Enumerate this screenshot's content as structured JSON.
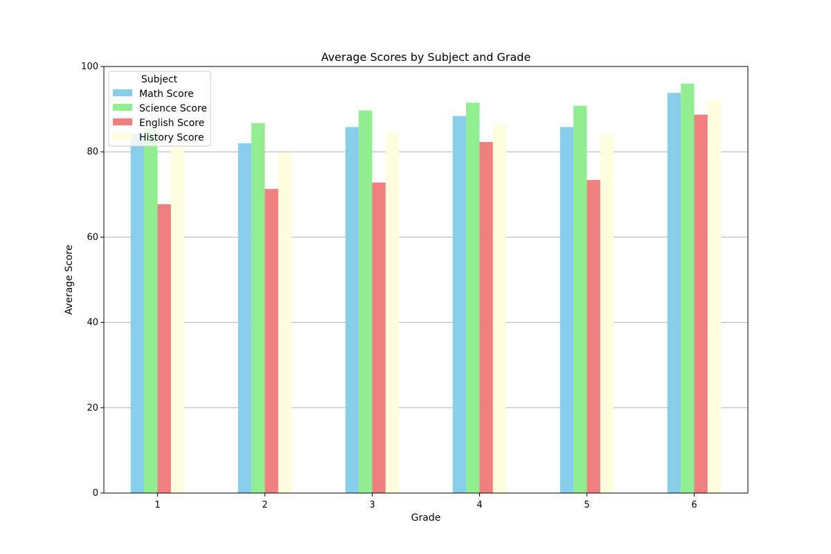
{
  "chart_data": {
    "type": "bar",
    "title": "Average Scores by Subject and Grade",
    "xlabel": "Grade",
    "ylabel": "Average Score",
    "categories": [
      "1",
      "2",
      "3",
      "4",
      "5",
      "6"
    ],
    "ylim": [
      0,
      100
    ],
    "yticks": [
      "0",
      "20",
      "40",
      "60",
      "80",
      "100"
    ],
    "grid": "y-axis horizontal lines",
    "legend": {
      "title": "Subject",
      "position": "top-left"
    },
    "series": [
      {
        "name": "Math Score",
        "color": "#87ceeb",
        "values": [
          84.2,
          82.0,
          85.8,
          88.4,
          85.8,
          93.8
        ]
      },
      {
        "name": "Science Score",
        "color": "#90ee90",
        "values": [
          85.5,
          86.7,
          89.7,
          91.5,
          90.8,
          96.0
        ]
      },
      {
        "name": "English Score",
        "color": "#f08080",
        "values": [
          67.7,
          71.3,
          72.8,
          82.3,
          73.4,
          88.7
        ]
      },
      {
        "name": "History Score",
        "color": "#ffffe0",
        "values": [
          81.5,
          79.8,
          84.6,
          86.4,
          84.0,
          92.1
        ]
      }
    ]
  }
}
